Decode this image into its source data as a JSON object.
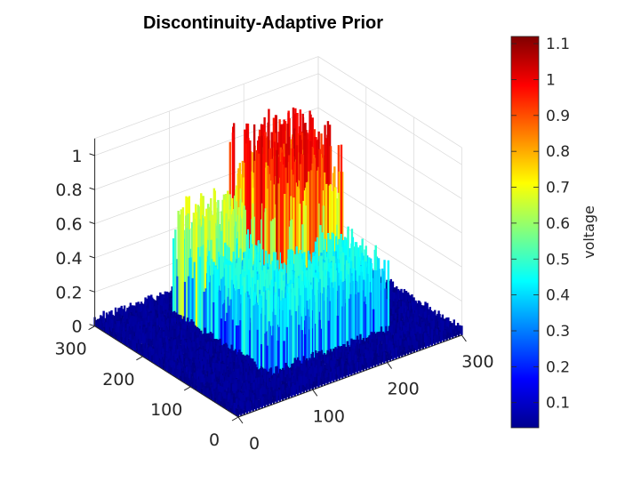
{
  "chart_data": {
    "type": "surface",
    "title": "Discontinuity-Adaptive Prior",
    "xlabel": "",
    "ylabel": "",
    "zlabel": "",
    "x_ticks": [
      "0",
      "100",
      "200",
      "300"
    ],
    "y_ticks": [
      "0",
      "100",
      "200",
      "300"
    ],
    "z_ticks": [
      "0",
      "0.2",
      "0.4",
      "0.6",
      "0.8",
      "1"
    ],
    "xlim": [
      0,
      300
    ],
    "ylim": [
      0,
      300
    ],
    "zlim": [
      0,
      1.1
    ],
    "grid": true,
    "colormap": "jet",
    "colorbar": {
      "label": "voltage",
      "ticks": [
        "0.1",
        "0.2",
        "0.3",
        "0.4",
        "0.5",
        "0.6",
        "0.7",
        "0.8",
        "0.9",
        "1",
        "1.1"
      ],
      "range": [
        0.03,
        1.12
      ]
    },
    "regions": [
      {
        "name": "background",
        "x_range": [
          0,
          300
        ],
        "y_range": [
          0,
          300
        ],
        "level": 0.04
      },
      {
        "name": "raised-block",
        "x_range": [
          80,
          240
        ],
        "y_range": [
          60,
          260
        ],
        "level": 0.45
      },
      {
        "name": "upper-plateau",
        "x_range": [
          150,
          240
        ],
        "y_range": [
          150,
          260
        ],
        "level": 0.95
      },
      {
        "name": "left-ridge",
        "x_range": [
          80,
          150
        ],
        "y_range": [
          200,
          260
        ],
        "level": 0.65
      }
    ]
  }
}
